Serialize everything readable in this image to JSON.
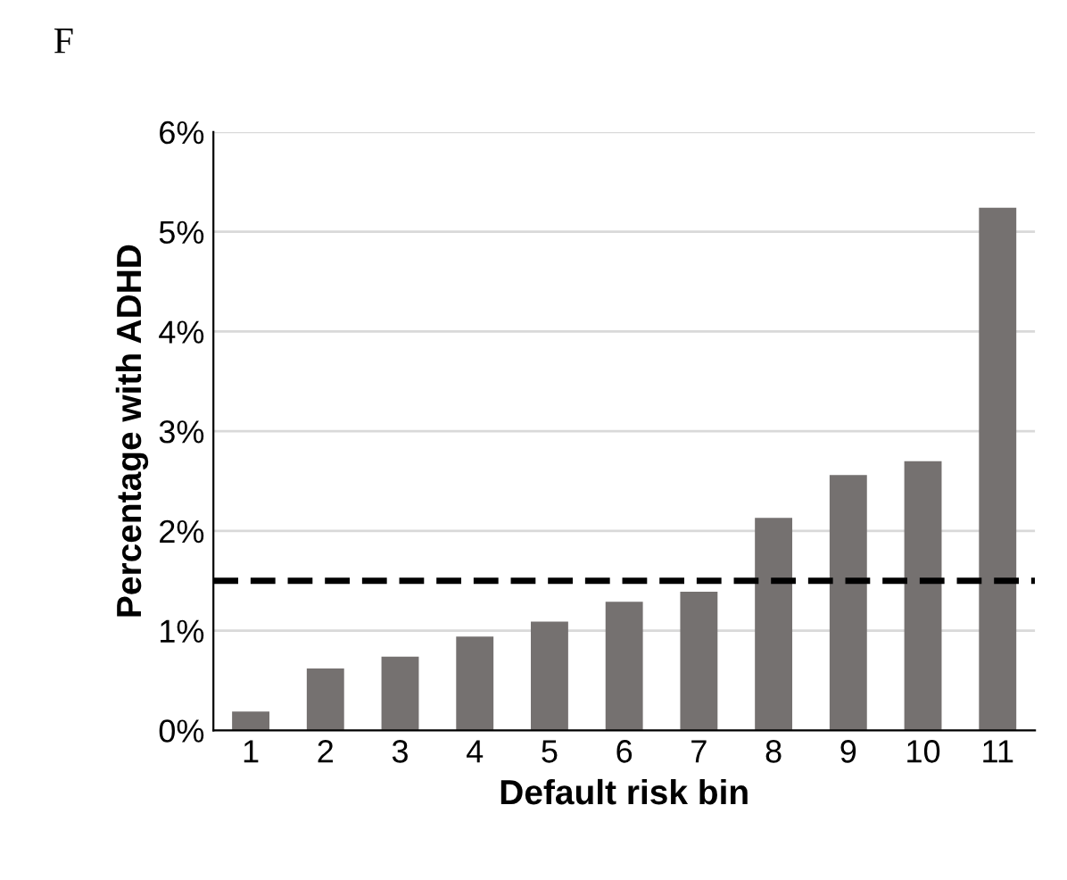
{
  "chart_data": {
    "type": "bar",
    "title": "F",
    "xlabel": "Default risk bin",
    "ylabel": "Percentage with ADHD",
    "categories": [
      "1",
      "2",
      "3",
      "4",
      "5",
      "6",
      "7",
      "8",
      "9",
      "10",
      "11"
    ],
    "values": [
      0.19,
      0.62,
      0.74,
      0.94,
      1.09,
      1.29,
      1.39,
      2.13,
      2.56,
      2.7,
      5.24
    ],
    "color": "#757170",
    "ylim": [
      0,
      6
    ],
    "yticks": [
      {
        "value": 0,
        "label": "0%"
      },
      {
        "value": 1,
        "label": "1%"
      },
      {
        "value": 2,
        "label": "2%"
      },
      {
        "value": 3,
        "label": "3%"
      },
      {
        "value": 4,
        "label": "4%"
      },
      {
        "value": 5,
        "label": "5%"
      },
      {
        "value": 6,
        "label": "6%"
      }
    ],
    "grid": "y",
    "ref_lines": [
      {
        "axis": "y",
        "value": 1.5,
        "color": "#000000",
        "line_style": "dashed"
      }
    ]
  }
}
